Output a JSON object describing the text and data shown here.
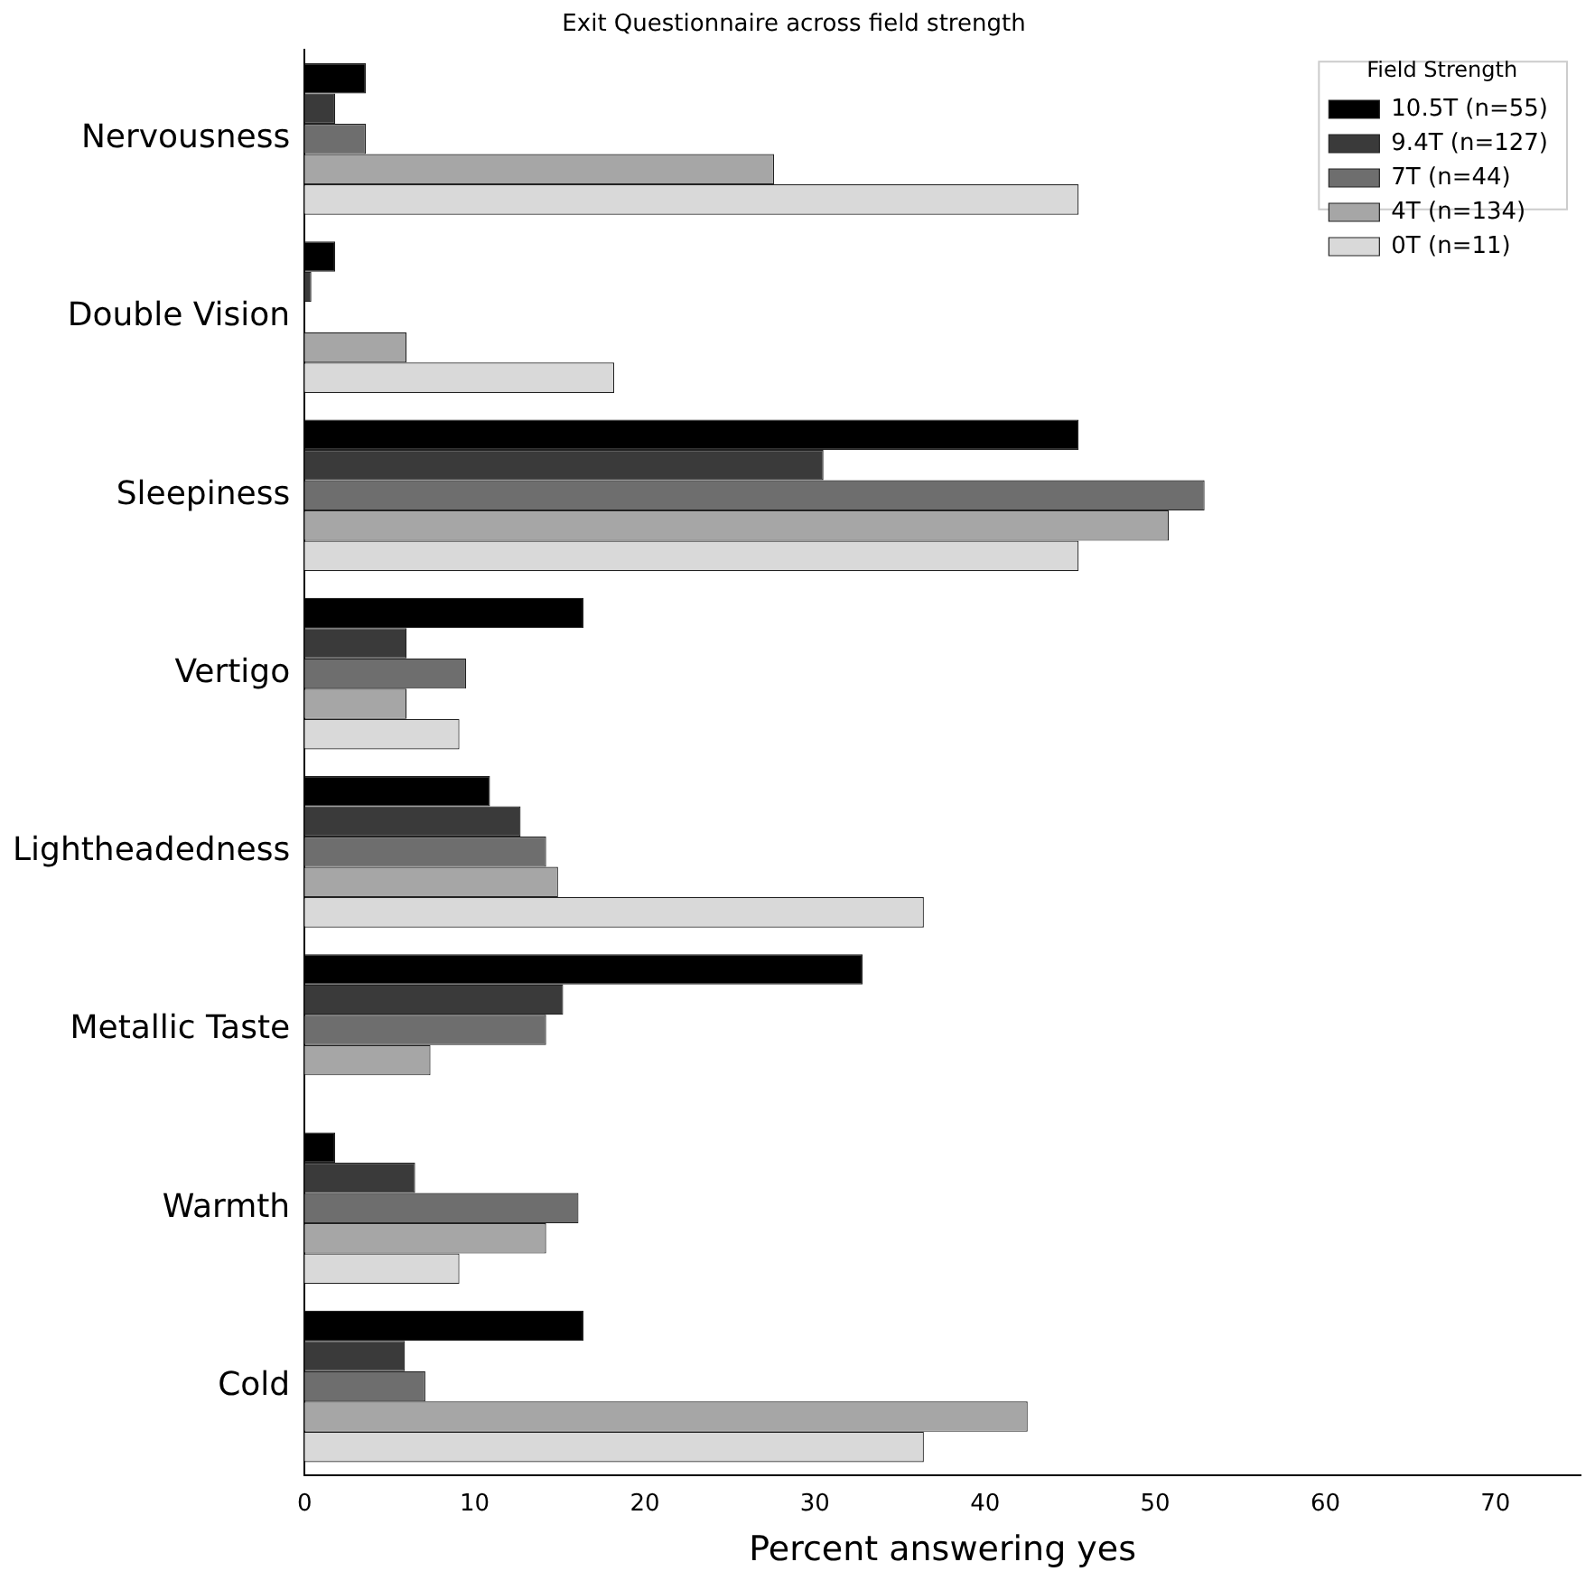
{
  "chart_data": {
    "type": "bar",
    "orientation": "horizontal",
    "title": "Exit Questionnaire across field strength",
    "xlabel": "Percent answering yes",
    "legend_title": "Field Strength",
    "legend": "top right",
    "grid": false,
    "categories": [
      "Nervousness",
      "Double Vision",
      "Sleepiness",
      "Vertigo",
      "Lightheadedness",
      "Metallic Taste",
      "Warmth",
      "Cold"
    ],
    "xlim": [
      0,
      75
    ],
    "xticks": [
      0,
      10,
      20,
      30,
      40,
      50,
      60,
      70
    ],
    "series": [
      {
        "name": "10.5T (n=55)",
        "color": "#000000",
        "values": [
          3.6,
          1.8,
          45.5,
          16.4,
          10.9,
          32.8,
          1.8,
          16.4
        ]
      },
      {
        "name": "9.4T (n=127)",
        "color": "#3a3a3a",
        "values": [
          1.8,
          0.4,
          30.5,
          6.0,
          12.7,
          15.2,
          6.5,
          5.9
        ]
      },
      {
        "name": "7T (n=44)",
        "color": "#6e6e6e",
        "values": [
          3.6,
          0,
          52.9,
          9.5,
          14.2,
          14.2,
          16.1,
          7.1
        ]
      },
      {
        "name": "4T (n=134)",
        "color": "#a6a6a6",
        "values": [
          27.6,
          6.0,
          50.8,
          6.0,
          14.9,
          7.4,
          14.2,
          42.5
        ]
      },
      {
        "name": "0T (n=11)",
        "color": "#d9d9d9",
        "values": [
          45.5,
          18.2,
          45.5,
          9.1,
          36.4,
          0,
          9.1,
          36.4
        ]
      }
    ]
  }
}
